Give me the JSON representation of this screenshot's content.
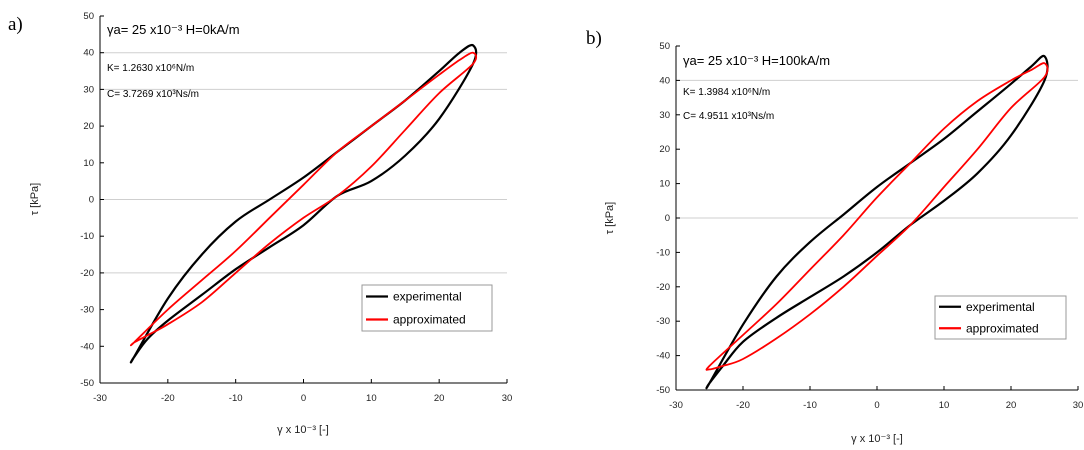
{
  "panels": [
    {
      "letter": "a)",
      "ylabel": "τ [kPa]",
      "xlabel": "γ x 10⁻³ [-]",
      "annotation_line1": "γa= 25 x10⁻³ H=0kA/m",
      "annotation_line2": "K= 1.2630 x10⁶N/m",
      "annotation_line3": "C= 3.7269 x10³Ns/m"
    },
    {
      "letter": "b)",
      "ylabel": "τ [kPa]",
      "xlabel": "γ x 10⁻³ [-]",
      "annotation_line1": "γa= 25 x10⁻³ H=100kA/m",
      "annotation_line2": "K= 1.3984 x10⁶N/m",
      "annotation_line3": "C= 4.9511 x10³Ns/m"
    }
  ],
  "legend": {
    "experimental": "experimental",
    "approximated": "approximated"
  },
  "colors": {
    "experimental": "#000000",
    "approximated": "#ff0000",
    "gridline": "#cfcfcf"
  },
  "chart_data": [
    {
      "type": "line",
      "title": "",
      "xlabel": "γ x 10⁻³ [-]",
      "ylabel": "τ [kPa]",
      "xlim": [
        -30,
        30
      ],
      "ylim": [
        -50,
        50
      ],
      "xticks": [
        -30,
        -20,
        -10,
        0,
        10,
        20,
        30
      ],
      "yticks": [
        -50,
        -40,
        -30,
        -20,
        -10,
        0,
        10,
        20,
        30,
        40,
        50
      ],
      "grid": "horizontal lines at 40, 30, 0, -20",
      "legend_position": "bottom-right",
      "series": [
        {
          "name": "experimental",
          "upper_branch": {
            "x": [
              -25,
              -20,
              -15,
              -10,
              -5,
              0,
              5,
              10,
              15,
              20,
              23,
              25
            ],
            "y": [
              -43,
              -27,
              -15,
              -6,
              0,
              6,
              13,
              20,
              27,
              35,
              40,
              42
            ]
          },
          "lower_branch": {
            "x": [
              25,
              20,
              15,
              10,
              5,
              0,
              -5,
              -10,
              -15,
              -20,
              -23,
              -25
            ],
            "y": [
              37,
              22,
              12,
              5,
              1,
              -7,
              -13,
              -19,
              -26,
              -33,
              -38,
              -43
            ]
          }
        },
        {
          "name": "approximated",
          "upper_branch": {
            "x": [
              -25,
              -20,
              -15,
              -10,
              -5,
              0,
              5,
              10,
              15,
              20,
              23,
              25
            ],
            "y": [
              -39,
              -30,
              -22,
              -14,
              -5,
              4,
              13,
              20,
              27,
              34,
              38,
              40
            ]
          },
          "lower_branch": {
            "x": [
              25,
              20,
              15,
              10,
              5,
              0,
              -5,
              -10,
              -15,
              -20,
              -23,
              -25
            ],
            "y": [
              37,
              29,
              19,
              9,
              1,
              -5,
              -12,
              -20,
              -28,
              -34,
              -37,
              -39
            ]
          }
        }
      ]
    },
    {
      "type": "line",
      "title": "",
      "xlabel": "γ x 10⁻³ [-]",
      "ylabel": "τ [kPa]",
      "xlim": [
        -30,
        30
      ],
      "ylim": [
        -50,
        50
      ],
      "xticks": [
        -30,
        -20,
        -10,
        0,
        10,
        20,
        30
      ],
      "yticks": [
        -50,
        -40,
        -30,
        -20,
        -10,
        0,
        10,
        20,
        30,
        40,
        50
      ],
      "grid": "horizontal lines at 40, 0",
      "legend_position": "bottom-right",
      "series": [
        {
          "name": "experimental",
          "upper_branch": {
            "x": [
              -25,
              -20,
              -15,
              -10,
              -5,
              0,
              5,
              10,
              15,
              20,
              23,
              25
            ],
            "y": [
              -48,
              -31,
              -17,
              -7,
              1,
              9,
              16,
              23,
              31,
              39,
              44,
              47
            ]
          },
          "lower_branch": {
            "x": [
              25,
              20,
              15,
              10,
              5,
              0,
              -5,
              -10,
              -15,
              -20,
              -23,
              -25
            ],
            "y": [
              40,
              24,
              13,
              5,
              -2,
              -10,
              -17,
              -23,
              -29,
              -36,
              -43,
              -48
            ]
          }
        },
        {
          "name": "approximated",
          "upper_branch": {
            "x": [
              -25,
              -20,
              -15,
              -10,
              -5,
              0,
              5,
              10,
              15,
              20,
              23,
              25
            ],
            "y": [
              -43,
              -34,
              -25,
              -15,
              -5,
              6,
              16,
              26,
              34,
              40,
              43,
              45
            ]
          },
          "lower_branch": {
            "x": [
              25,
              20,
              15,
              10,
              5,
              0,
              -5,
              -10,
              -15,
              -20,
              -23,
              -25
            ],
            "y": [
              41,
              32,
              20,
              9,
              -2,
              -11,
              -20,
              -28,
              -35,
              -41,
              -43,
              -44
            ]
          }
        }
      ]
    }
  ]
}
